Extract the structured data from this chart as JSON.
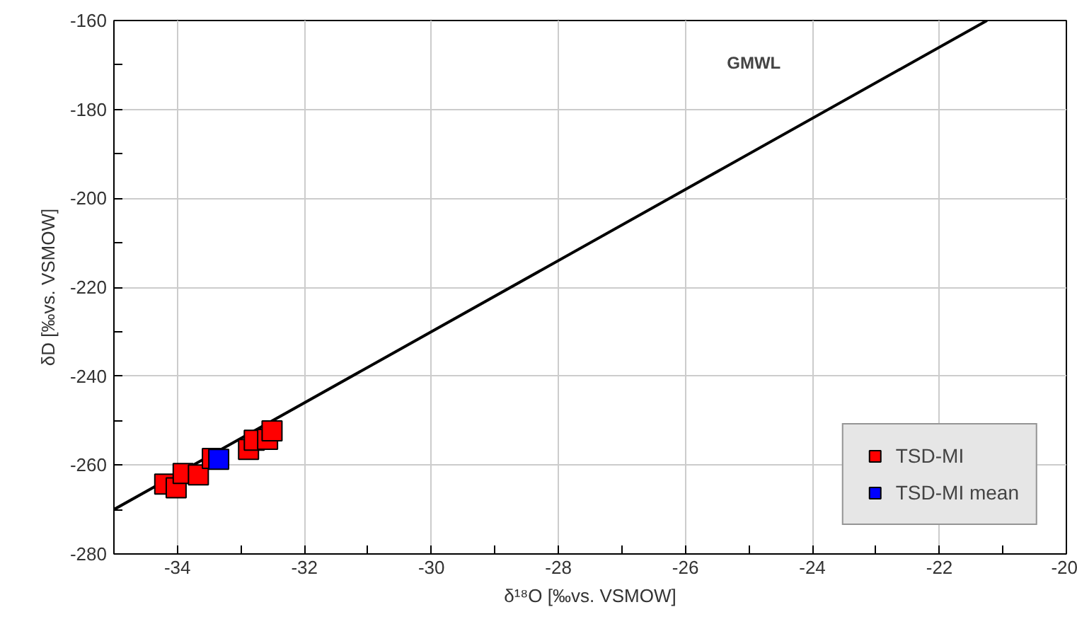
{
  "chart_data": {
    "type": "scatter",
    "xlabel": "δ¹⁸O [‰vs. VSMOW]",
    "ylabel": "δD [‰vs. VSMOW]",
    "xlim": [
      -35,
      -20
    ],
    "ylim": [
      -280,
      -160
    ],
    "xticks": [
      {
        "value": -35,
        "label": null
      },
      -34,
      {
        "value": -33,
        "label": null
      },
      -32,
      {
        "value": -31,
        "label": null
      },
      -30,
      {
        "value": -29,
        "label": null
      },
      -28,
      {
        "value": -27,
        "label": null
      },
      -26,
      {
        "value": -25,
        "label": null
      },
      -24,
      {
        "value": -23,
        "label": null
      },
      -22,
      {
        "value": -21,
        "label": null
      },
      -20
    ],
    "yticks": [
      -280,
      {
        "value": -270,
        "label": null
      },
      -260,
      {
        "value": -250,
        "label": null
      },
      -240,
      {
        "value": -230,
        "label": null
      },
      -220,
      {
        "value": -210,
        "label": null
      },
      -200,
      {
        "value": -190,
        "label": null
      },
      -180,
      {
        "value": -170,
        "label": null
      },
      -160
    ],
    "annotations": [
      "GMWL"
    ],
    "grid": true,
    "legend": "bottom right",
    "marker": "square",
    "series": [
      {
        "type": "line",
        "marker": "none",
        "color": "#000000",
        "x": [
          -35,
          -21.25
        ],
        "values": [
          -270,
          -160
        ]
      },
      {
        "name": "TSD-MI",
        "color": "#ff0000",
        "x": [
          -34.2,
          -34.02,
          -33.91,
          -33.67,
          -33.45,
          -32.88,
          -32.79,
          -32.58,
          -32.51
        ],
        "values": [
          -264.3,
          -265.1,
          -261.9,
          -262.2,
          -258.5,
          -256.5,
          -254.4,
          -254.2,
          -252.3
        ]
      },
      {
        "name": "TSD-MI mean",
        "color": "#0000ff",
        "x": [
          -33.35
        ],
        "values": [
          -258.7
        ]
      }
    ]
  }
}
